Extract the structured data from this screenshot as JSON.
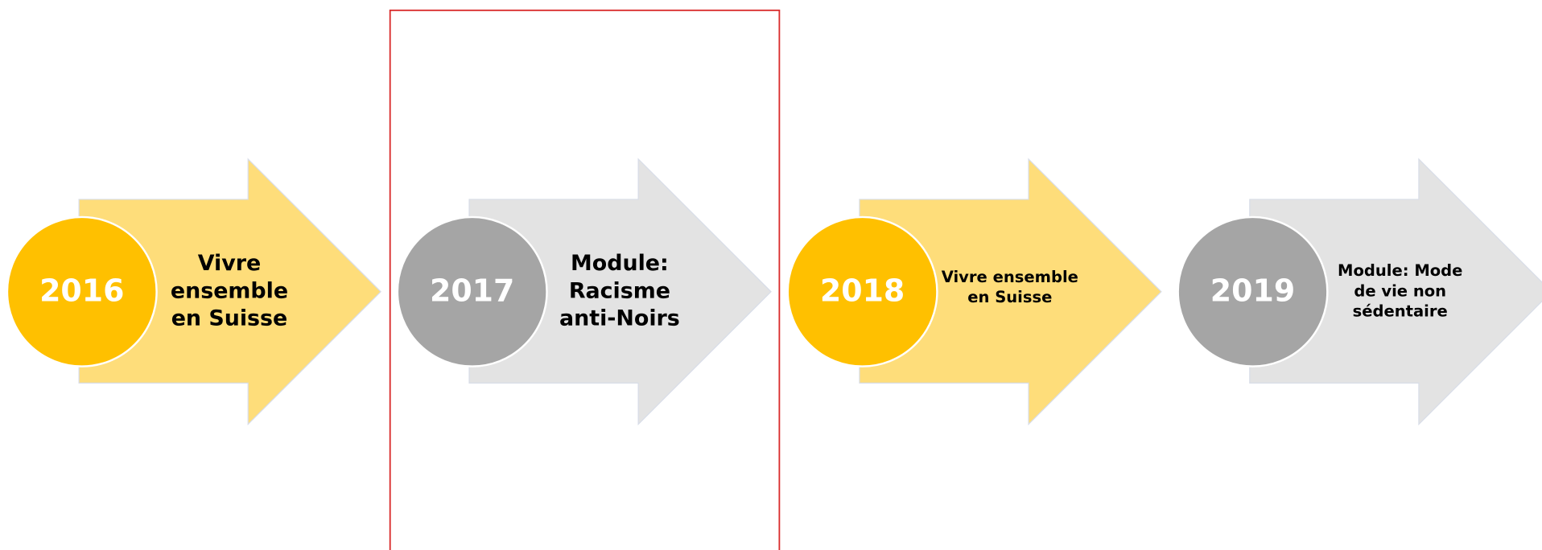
{
  "timeline": {
    "items": [
      {
        "year": "2016",
        "label": [
          "Vivre",
          "ensemble",
          "en Suisse"
        ],
        "circle_color": "#ffc000",
        "arrow_color": "#fedd7a",
        "font_size": 22
      },
      {
        "year": "2017",
        "label": [
          "Module:",
          "Racisme",
          "anti-Noirs"
        ],
        "circle_color": "#a5a5a5",
        "arrow_color": "#e3e3e3",
        "font_size": 22
      },
      {
        "year": "2018",
        "label": [
          "Vivre ensemble",
          "en Suisse"
        ],
        "circle_color": "#ffc000",
        "arrow_color": "#fedd7a",
        "font_size": 16
      },
      {
        "year": "2019",
        "label": [
          "Module: Mode",
          "de vie non",
          "sédentaire"
        ],
        "circle_color": "#a5a5a5",
        "arrow_color": "#e3e3e3",
        "font_size": 16
      }
    ]
  }
}
